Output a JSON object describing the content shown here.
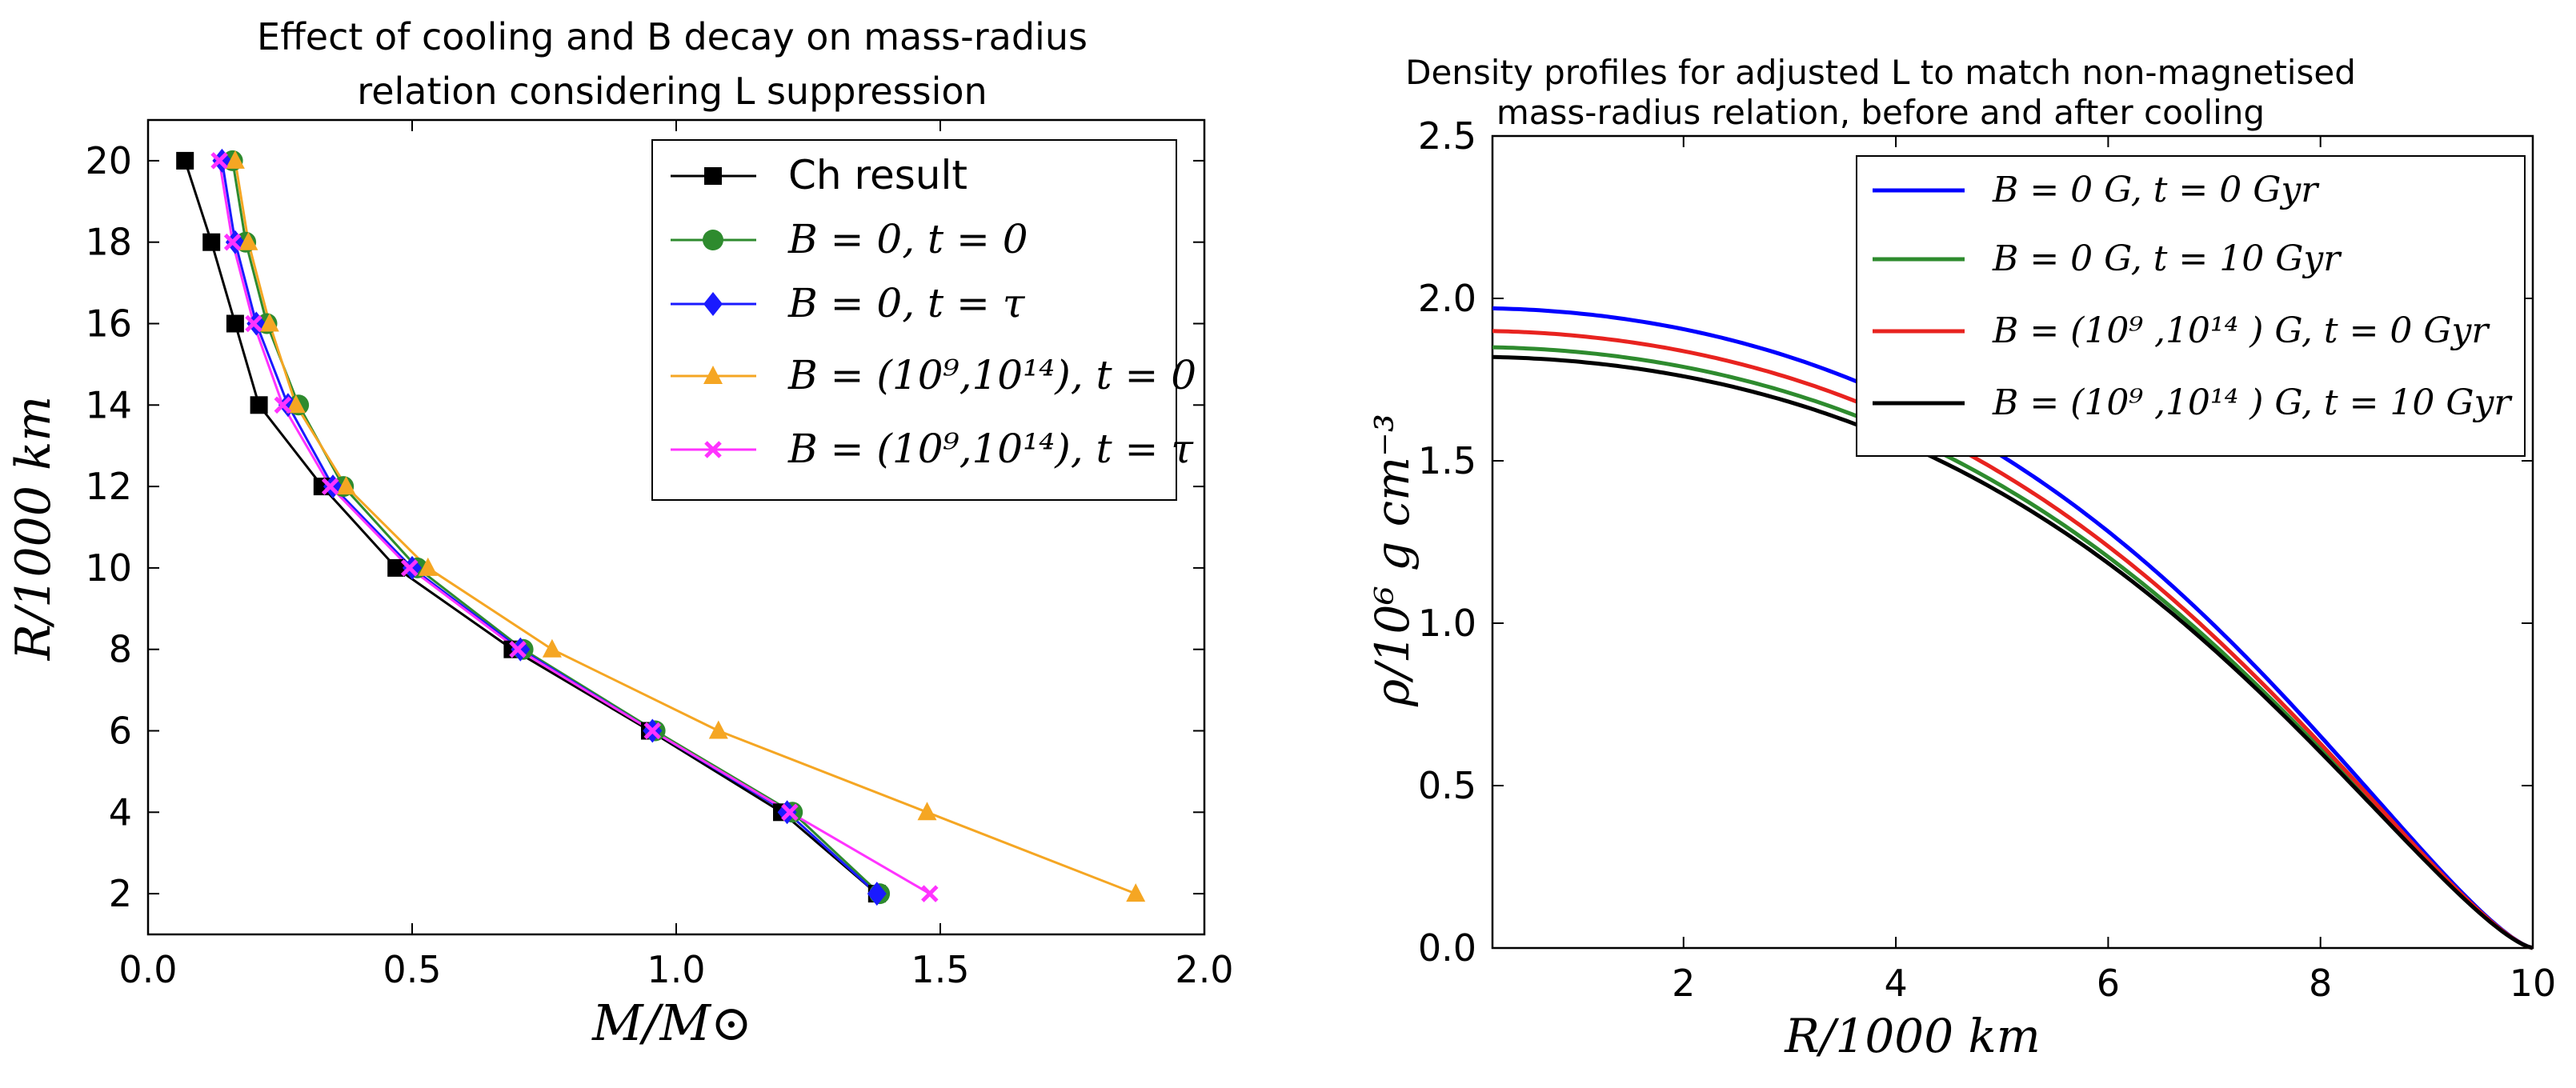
{
  "chart_data": [
    {
      "type": "line",
      "title_lines": [
        "Effect of cooling and B decay on mass-radius",
        "relation considering L suppression"
      ],
      "xlabel": "M/M⊙",
      "ylabel": "R/1000 km",
      "xlim": [
        0.0,
        2.0
      ],
      "ylim": [
        1,
        21
      ],
      "xticks": [
        0.0,
        0.5,
        1.0,
        1.5,
        2.0
      ],
      "xtick_labels": [
        "0.0",
        "0.5",
        "1.0",
        "1.5",
        "2.0"
      ],
      "yticks": [
        2,
        4,
        6,
        8,
        10,
        12,
        14,
        16,
        18,
        20
      ],
      "ytick_labels": [
        "2",
        "4",
        "6",
        "8",
        "10",
        "12",
        "14",
        "16",
        "18",
        "20"
      ],
      "legend_position": "top-right",
      "series": [
        {
          "name": "Ch result",
          "color": "#000000",
          "marker": "square",
          "x": [
            0.07,
            0.12,
            0.165,
            0.21,
            0.33,
            0.47,
            0.69,
            0.95,
            1.2,
            1.38
          ],
          "y": [
            20,
            18,
            16,
            14,
            12,
            10,
            8,
            6,
            4,
            2
          ]
        },
        {
          "name": "B = 0, t = 0",
          "color": "#2e8b2e",
          "marker": "circle",
          "x": [
            0.16,
            0.185,
            0.225,
            0.285,
            0.37,
            0.51,
            0.71,
            0.96,
            1.22,
            1.385
          ],
          "y": [
            20,
            18,
            16,
            14,
            12,
            10,
            8,
            6,
            4,
            2
          ]
        },
        {
          "name": "B = 0, t = τ",
          "color": "#1a1aff",
          "marker": "diamond",
          "x": [
            0.14,
            0.165,
            0.205,
            0.265,
            0.35,
            0.5,
            0.705,
            0.955,
            1.21,
            1.38
          ],
          "y": [
            20,
            18,
            16,
            14,
            12,
            10,
            8,
            6,
            4,
            2
          ]
        },
        {
          "name": "B = (10⁹,10¹⁴), t = 0",
          "color": "#f5a623",
          "marker": "triangle",
          "x": [
            0.165,
            0.19,
            0.23,
            0.28,
            0.375,
            0.53,
            0.765,
            1.08,
            1.475,
            1.87
          ],
          "y": [
            20,
            18,
            16,
            14,
            12,
            10,
            8,
            6,
            4,
            2
          ]
        },
        {
          "name": "B = (10⁹,10¹⁴), t = τ",
          "color": "#ff33ff",
          "marker": "x",
          "x": [
            0.135,
            0.16,
            0.2,
            0.255,
            0.345,
            0.495,
            0.7,
            0.955,
            1.215,
            1.48
          ],
          "y": [
            20,
            18,
            16,
            14,
            12,
            10,
            8,
            6,
            4,
            2
          ]
        }
      ]
    },
    {
      "type": "line",
      "title_lines": [
        "Density profiles for adjusted L to match non-magnetised",
        "mass-radius relation, before and after cooling"
      ],
      "xlabel": "R/1000 km",
      "ylabel": "ρ/10⁶ g cm⁻³",
      "xlim": [
        0.2,
        10.0
      ],
      "ylim": [
        0.0,
        2.5
      ],
      "xticks": [
        2,
        4,
        6,
        8,
        10
      ],
      "xtick_labels": [
        "2",
        "4",
        "6",
        "8",
        "10"
      ],
      "yticks": [
        0.0,
        0.5,
        1.0,
        1.5,
        2.0,
        2.5
      ],
      "ytick_labels": [
        "0.0",
        "0.5",
        "1.0",
        "1.5",
        "2.0",
        "2.5"
      ],
      "legend_position": "top-right",
      "profile_form": "rho = rho_c * (1 - (R/10)^2)^1.4 * (1 + 0.6 (R/10)^2)",
      "series": [
        {
          "name": "B = 0 G, t = 0 Gyr",
          "color": "#0000ff",
          "central_density": 1.97
        },
        {
          "name": "B = 0 G, t = 10 Gyr",
          "color": "#2e8b2e",
          "central_density": 1.85
        },
        {
          "name": "B = (10⁹ ,10¹⁴ ) G, t = 0 Gyr",
          "color": "#e8231f",
          "central_density": 1.9
        },
        {
          "name": "B = (10⁹ ,10¹⁴ ) G, t = 10 Gyr",
          "color": "#000000",
          "central_density": 1.82
        }
      ]
    }
  ]
}
